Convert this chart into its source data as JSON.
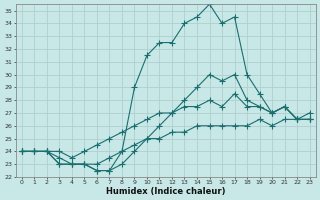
{
  "xlabel": "Humidex (Indice chaleur)",
  "background_color": "#c8e8e8",
  "grid_color": "#b0d0d0",
  "line_color": "#1a6e6e",
  "xlim": [
    -0.5,
    23.5
  ],
  "ylim": [
    22,
    35.5
  ],
  "yticks": [
    22,
    23,
    24,
    25,
    26,
    27,
    28,
    29,
    30,
    31,
    32,
    33,
    34,
    35
  ],
  "xticks": [
    0,
    1,
    2,
    3,
    4,
    5,
    6,
    7,
    8,
    9,
    10,
    11,
    12,
    13,
    14,
    15,
    16,
    17,
    18,
    19,
    20,
    21,
    22,
    23
  ],
  "line1_x": [
    0,
    1,
    2,
    3,
    4,
    5,
    6,
    7,
    8,
    9,
    10,
    11,
    12,
    13,
    14,
    15,
    16,
    17,
    18,
    19,
    20,
    21,
    22,
    23
  ],
  "line1_y": [
    24,
    24,
    24,
    23,
    23,
    23,
    22.5,
    22.5,
    23,
    24,
    25,
    26,
    27,
    28,
    29,
    30,
    29.5,
    30,
    28,
    27.5,
    27,
    27.5,
    26.5,
    26.5
  ],
  "line2_x": [
    0,
    1,
    2,
    3,
    4,
    5,
    6,
    7,
    8,
    9,
    10,
    11,
    12,
    13,
    14,
    15,
    16,
    17,
    18,
    19,
    20,
    21,
    22,
    23
  ],
  "line2_y": [
    24,
    24,
    24,
    23,
    23,
    23,
    22.5,
    22.5,
    24,
    29,
    31.5,
    32.5,
    32.5,
    34,
    34.5,
    35.5,
    34,
    34.5,
    30,
    28.5,
    27,
    27.5,
    26.5,
    26.5
  ],
  "line3_x": [
    0,
    1,
    2,
    3,
    4,
    5,
    6,
    7,
    8,
    9,
    10,
    11,
    12,
    13,
    14,
    15,
    16,
    17,
    18,
    19,
    20,
    21,
    22,
    23
  ],
  "line3_y": [
    24,
    24,
    24,
    24,
    23.5,
    24,
    24.5,
    25,
    25.5,
    26,
    26.5,
    27,
    27,
    27.5,
    27.5,
    28,
    27.5,
    28.5,
    27.5,
    27.5,
    27,
    27.5,
    26.5,
    26.5
  ],
  "line4_x": [
    0,
    1,
    2,
    3,
    4,
    5,
    6,
    7,
    8,
    9,
    10,
    11,
    12,
    13,
    14,
    15,
    16,
    17,
    18,
    19,
    20,
    21,
    22,
    23
  ],
  "line4_y": [
    24,
    24,
    24,
    23.5,
    23,
    23,
    23,
    23.5,
    24,
    24.5,
    25,
    25,
    25.5,
    25.5,
    26,
    26,
    26,
    26,
    26,
    26.5,
    26,
    26.5,
    26.5,
    27
  ]
}
